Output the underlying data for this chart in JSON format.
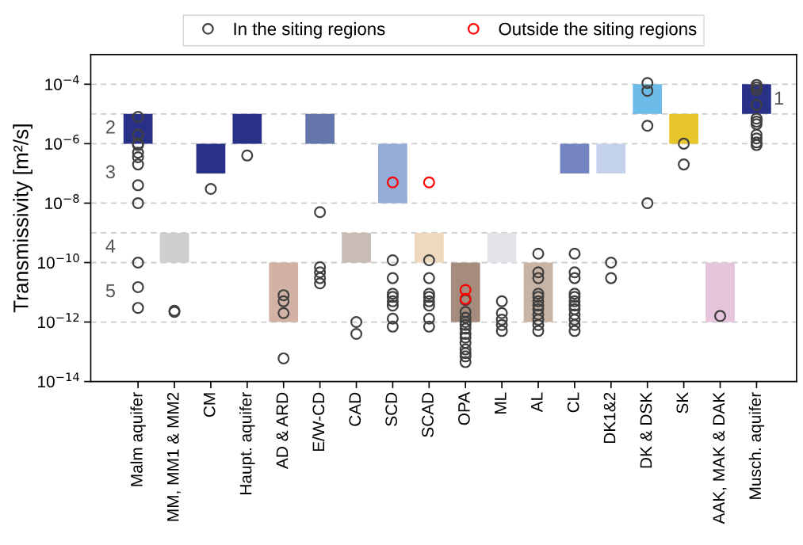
{
  "chart_data": {
    "type": "bar",
    "ylabel": "Transmissivity [m²/s]",
    "log": "y",
    "categories": [
      "Malm aquifer",
      "MM, MM1 & MM2",
      "CM",
      "Haupt. aquifer",
      "AD & ARD",
      "E/W-CD",
      "CAD",
      "SCD",
      "SCAD",
      "OPA",
      "ML",
      "AL",
      "CL",
      "DK1&2",
      "DK & DSK",
      "SK",
      "AAK, MAK & DAK",
      "Musch. aquifer"
    ],
    "ylim": [
      1e-14,
      0.001
    ],
    "yticks": [
      {
        "value": 1e-14,
        "label": "10$^{−14}$"
      },
      {
        "value": 1e-12,
        "label": "10$^{−12}$"
      },
      {
        "value": 1e-10,
        "label": "10$^{−10}$"
      },
      {
        "value": 1e-08,
        "label": "10$^{−8}$"
      },
      {
        "value": 1e-06,
        "label": "10$^{−6}$"
      },
      {
        "value": 0.0001,
        "label": "10$^{−4}$"
      }
    ],
    "grid": false,
    "legend": "top",
    "marker": "circle",
    "series": [
      {
        "base": [
          1e-06,
          1e-10,
          1e-07,
          1e-06,
          1e-12,
          1e-06,
          1e-10,
          1e-08,
          1e-10,
          1e-12,
          1e-10,
          1e-12,
          1e-07,
          1e-07,
          1e-05,
          1e-06,
          1e-12,
          1e-05
        ],
        "values": [
          9e-06,
          9e-10,
          9e-07,
          9e-06,
          9.9e-11,
          9e-06,
          9e-10,
          9.9e-07,
          9e-10,
          9.9e-11,
          9e-10,
          9.9e-11,
          9e-07,
          9e-07,
          9e-05,
          9e-06,
          9.9e-11,
          9e-05
        ],
        "colors": [
          "#283087",
          "#cfcfcf",
          "#283087",
          "#283087",
          "#d3b2a6",
          "#6577aa",
          "#c8bcb4",
          "#94acd8",
          "#eed9bf",
          "#a58c7c",
          "#e5e3ea",
          "#c8b4a4",
          "#7384c0",
          "#c3d1ea",
          "#6cbbe8",
          "#e8c52a",
          "#e5c4dc",
          "#283087"
        ]
      },
      {
        "type": "scatter",
        "name": "In the siting regions",
        "color": "#404040",
        "x": [
          "Malm aquifer",
          "Malm aquifer",
          "Malm aquifer",
          "Malm aquifer",
          "Malm aquifer",
          "Malm aquifer",
          "Malm aquifer",
          "Malm aquifer",
          "Malm aquifer",
          "Malm aquifer",
          "Malm aquifer",
          "Malm aquifer",
          "MM, MM1 & MM2",
          "MM, MM1 & MM2",
          "CM",
          "Haupt. aquifer",
          "AD & ARD",
          "AD & ARD",
          "AD & ARD",
          "AD & ARD",
          "E/W-CD",
          "E/W-CD",
          "E/W-CD",
          "E/W-CD",
          "E/W-CD",
          "CAD",
          "CAD",
          "SCD",
          "SCD",
          "SCD",
          "SCD",
          "SCD",
          "SCD",
          "SCD",
          "SCD",
          "SCAD",
          "SCAD",
          "SCAD",
          "SCAD",
          "SCAD",
          "SCAD",
          "SCAD",
          "SCAD",
          "OPA",
          "OPA",
          "OPA",
          "OPA",
          "OPA",
          "OPA",
          "OPA",
          "OPA",
          "OPA",
          "OPA",
          "OPA",
          "OPA",
          "OPA",
          "ML",
          "ML",
          "ML",
          "ML",
          "ML",
          "AL",
          "AL",
          "AL",
          "AL",
          "AL",
          "AL",
          "AL",
          "AL",
          "AL",
          "AL",
          "AL",
          "AL",
          "CL",
          "CL",
          "CL",
          "CL",
          "CL",
          "CL",
          "CL",
          "CL",
          "CL",
          "CL",
          "CL",
          "CL",
          "DK1&2",
          "DK1&2",
          "DK & DSK",
          "DK & DSK",
          "DK & DSK",
          "DK & DSK",
          "SK",
          "SK",
          "AAK, MAK & DAK",
          "Musch. aquifer",
          "Musch. aquifer",
          "Musch. aquifer",
          "Musch. aquifer",
          "Musch. aquifer",
          "Musch. aquifer",
          "Musch. aquifer",
          "Musch. aquifer",
          "Musch. aquifer",
          "Musch. aquifer",
          "Musch. aquifer"
        ],
        "values": [
          8e-06,
          2e-06,
          1e-06,
          9e-07,
          5e-07,
          3.5e-07,
          2e-07,
          4e-08,
          1e-08,
          1e-10,
          1.5e-11,
          3e-12,
          2.2e-12,
          2.4e-12,
          3e-08,
          4e-07,
          8e-12,
          5e-12,
          2e-12,
          6e-14,
          5e-09,
          7e-11,
          4.7e-11,
          3e-11,
          2e-11,
          1e-12,
          4e-13,
          1.2e-10,
          3e-11,
          9e-12,
          7e-12,
          5e-12,
          3.6e-12,
          1.3e-12,
          7e-13,
          1.2e-10,
          3e-11,
          9e-12,
          7e-12,
          5e-12,
          3.6e-12,
          1.3e-12,
          7e-13,
          5.5e-12,
          2.2e-12,
          1.4e-12,
          1e-12,
          8e-13,
          6e-13,
          4e-13,
          3e-13,
          2e-13,
          1.2e-13,
          9e-14,
          7e-14,
          4.5e-14,
          5e-12,
          2e-12,
          1.2e-12,
          8e-13,
          5e-13,
          2e-10,
          4.7e-11,
          3e-11,
          9e-12,
          7e-12,
          5e-12,
          3.6e-12,
          2.7e-12,
          1.8e-12,
          1.2e-12,
          8e-13,
          5e-13,
          2e-10,
          4.7e-11,
          3e-11,
          9e-12,
          7e-12,
          5e-12,
          3.6e-12,
          2.7e-12,
          1.8e-12,
          1.2e-12,
          8e-13,
          5e-13,
          1e-10,
          3e-11,
          0.00011,
          6e-05,
          4e-06,
          1e-08,
          1e-06,
          2e-07,
          1.6e-12,
          9.5e-05,
          7.8e-05,
          6.3e-05,
          2e-05,
          7e-06,
          5.5e-06,
          4.5e-06,
          2e-06,
          1.5e-06,
          1.1e-06,
          9e-07
        ]
      },
      {
        "type": "scatter",
        "name": "Outside the siting regions",
        "color": "#ff0000",
        "x": [
          "SCD",
          "SCAD",
          "OPA",
          "OPA"
        ],
        "values": [
          5e-08,
          5e-08,
          1.2e-11,
          6e-12
        ]
      }
    ],
    "ref_lines": [
      {
        "axis": "y",
        "value": 0.0001,
        "color": "#cccccc",
        "line_style": "dashed"
      },
      {
        "axis": "y",
        "value": 1e-05,
        "color": "#cccccc",
        "line_style": "dashed"
      },
      {
        "axis": "y",
        "value": 1e-06,
        "color": "#cccccc",
        "line_style": "dashed"
      },
      {
        "axis": "y",
        "value": 1e-08,
        "color": "#cccccc",
        "line_style": "dashed"
      },
      {
        "axis": "y",
        "value": 1e-09,
        "color": "#cccccc",
        "line_style": "dashed"
      },
      {
        "axis": "y",
        "value": 1e-10,
        "color": "#cccccc",
        "line_style": "dashed"
      },
      {
        "axis": "y",
        "value": 1e-12,
        "color": "#cccccc",
        "line_style": "dashed"
      }
    ],
    "annotations": [
      "1",
      "2",
      "3",
      "4",
      "5"
    ]
  }
}
